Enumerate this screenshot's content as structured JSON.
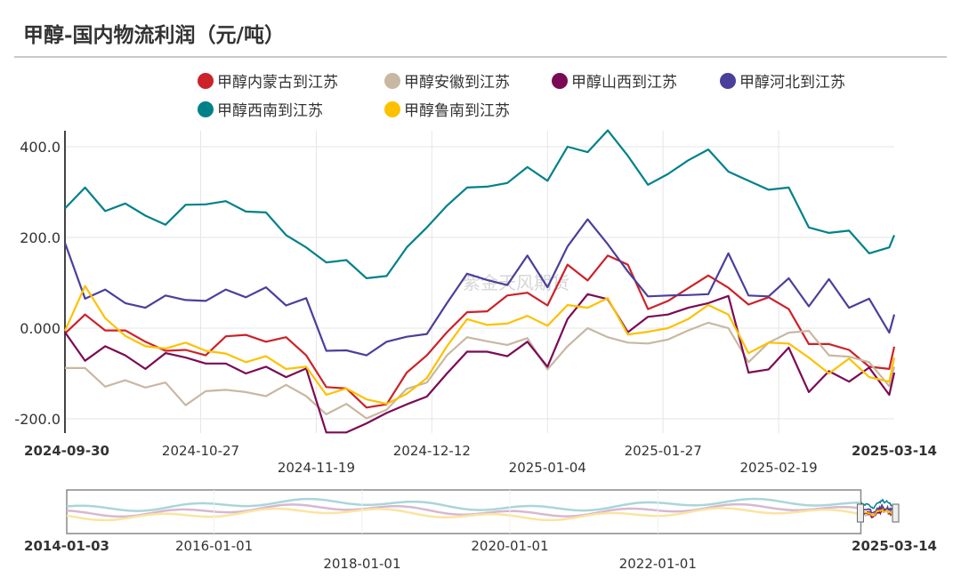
{
  "title": "甲醇-国内物流利润（元/吨）",
  "watermark": "紫金天风期货",
  "legend": [
    {
      "name": "甲醇内蒙古到江苏",
      "color": "#cc2229"
    },
    {
      "name": "甲醇安徽到江苏",
      "color": "#c8b8a2"
    },
    {
      "name": "甲醇山西到江苏",
      "color": "#7b0a55"
    },
    {
      "name": "甲醇河北到江苏",
      "color": "#4b3f9b"
    },
    {
      "name": "甲醇西南到江苏",
      "color": "#00818a"
    },
    {
      "name": "甲醇鲁南到江苏",
      "color": "#fdc100"
    }
  ],
  "navigator": {
    "start_label": "2014-01-03",
    "end_label": "2025-03-14",
    "ticks": [
      "2016-01-01",
      "2018-01-01",
      "2020-01-01",
      "2022-01-01"
    ],
    "range": [
      "2014-01-03",
      "2025-03-14"
    ],
    "selected": [
      "2024-09-30",
      "2025-03-14"
    ]
  },
  "chart_data": {
    "type": "line",
    "title": "甲醇-国内物流利润（元/吨）",
    "xlabel": "",
    "ylabel": "",
    "xlim": [
      "2024-09-30",
      "2025-03-14"
    ],
    "ylim": [
      -232,
      440
    ],
    "yticks": [
      400,
      200,
      0,
      -200
    ],
    "ytick_labels": [
      "400.0",
      "200.0",
      "0.000",
      "-200.0"
    ],
    "xtick_labels": {
      "start": "2024-09-30",
      "end": "2025-03-14",
      "middle": [
        "2024-10-27",
        "2024-11-19",
        "2024-12-12",
        "2025-01-04",
        "2025-01-27",
        "2025-02-19"
      ]
    },
    "grid": true,
    "legend": "top",
    "x": [
      "2024-09-30",
      "2024-10-04",
      "2024-10-08",
      "2024-10-12",
      "2024-10-16",
      "2024-10-20",
      "2024-10-24",
      "2024-10-28",
      "2024-11-01",
      "2024-11-05",
      "2024-11-09",
      "2024-11-13",
      "2024-11-17",
      "2024-11-21",
      "2024-11-25",
      "2024-11-29",
      "2024-12-03",
      "2024-12-07",
      "2024-12-11",
      "2024-12-15",
      "2024-12-19",
      "2024-12-23",
      "2024-12-27",
      "2024-12-31",
      "2025-01-04",
      "2025-01-08",
      "2025-01-12",
      "2025-01-16",
      "2025-01-20",
      "2025-01-24",
      "2025-01-28",
      "2025-02-01",
      "2025-02-05",
      "2025-02-09",
      "2025-02-13",
      "2025-02-17",
      "2025-02-21",
      "2025-02-25",
      "2025-03-01",
      "2025-03-05",
      "2025-03-09",
      "2025-03-13",
      "2025-03-14"
    ],
    "series": [
      {
        "name": "甲醇内蒙古到江苏",
        "color": "#cc2229",
        "values": [
          -12,
          30,
          -5,
          -5,
          -30,
          -50,
          -48,
          -60,
          -18,
          -15,
          -30,
          -20,
          -60,
          -130,
          -133,
          -175,
          -168,
          -98,
          -60,
          -9,
          35,
          37,
          72,
          78,
          50,
          140,
          105,
          160,
          140,
          42,
          60,
          88,
          116,
          89,
          52,
          68,
          42,
          -35,
          -35,
          -48,
          -85,
          -90,
          -41
        ]
      },
      {
        "name": "甲醇安徽到江苏",
        "color": "#c8b8a2",
        "values": [
          -88,
          -88,
          -129,
          -115,
          -131,
          -120,
          -170,
          -139,
          -136,
          -141,
          -150,
          -125,
          -150,
          -190,
          -167,
          -199,
          -180,
          -134,
          -120,
          -60,
          -20,
          -29,
          -37,
          -22,
          -91,
          -40,
          0,
          -20,
          -32,
          -34,
          -25,
          -5,
          12,
          0,
          -75,
          -32,
          -10,
          -6,
          -60,
          -63,
          -75,
          -128,
          -85
        ]
      },
      {
        "name": "甲醇山西到江苏",
        "color": "#7b0a55",
        "values": [
          -9,
          -72,
          -40,
          -60,
          -90,
          -55,
          -65,
          -78,
          -78,
          -100,
          -85,
          -108,
          -89,
          -230,
          -230,
          -210,
          -187,
          -168,
          -151,
          -100,
          -52,
          -52,
          -62,
          -30,
          -85,
          20,
          75,
          64,
          -9,
          25,
          30,
          45,
          55,
          71,
          -98,
          -91,
          -43,
          -141,
          -95,
          -118,
          -87,
          -147,
          -98
        ]
      },
      {
        "name": "甲醇河北到江苏",
        "color": "#4b3f9b",
        "values": [
          188,
          65,
          85,
          55,
          45,
          72,
          62,
          60,
          85,
          68,
          90,
          50,
          66,
          -50,
          -49,
          -60,
          -30,
          -19,
          -13,
          55,
          120,
          106,
          95,
          160,
          90,
          180,
          240,
          185,
          125,
          70,
          72,
          73,
          75,
          165,
          72,
          70,
          110,
          48,
          108,
          45,
          65,
          -10,
          30
        ]
      },
      {
        "name": "甲醇西南到江苏",
        "color": "#00818a",
        "values": [
          264,
          310,
          258,
          275,
          248,
          228,
          272,
          273,
          280,
          257,
          255,
          205,
          178,
          145,
          150,
          110,
          115,
          178,
          222,
          270,
          310,
          312,
          320,
          355,
          325,
          400,
          388,
          436,
          380,
          316,
          340,
          370,
          394,
          345,
          325,
          305,
          310,
          222,
          210,
          215,
          165,
          178,
          205
        ]
      },
      {
        "name": "甲醇鲁南到江苏",
        "color": "#fdc100",
        "values": [
          -6,
          93,
          22,
          -17,
          -40,
          -45,
          -32,
          -50,
          -56,
          -75,
          -62,
          -90,
          -85,
          -147,
          -133,
          -157,
          -167,
          -145,
          -110,
          -40,
          20,
          7,
          10,
          27,
          5,
          51,
          45,
          66,
          -14,
          -8,
          0,
          20,
          51,
          30,
          -55,
          -32,
          -34,
          -65,
          -100,
          -67,
          -108,
          -118,
          -65
        ]
      }
    ]
  }
}
